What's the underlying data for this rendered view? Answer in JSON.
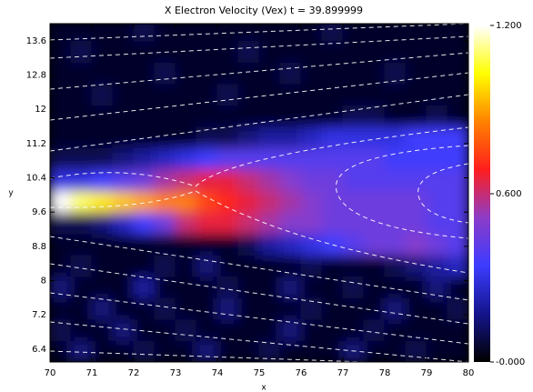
{
  "chart_data": {
    "type": "heatmap",
    "title": "X Electron Velocity (Vex)   t = 39.899999",
    "x_label": "x",
    "y_label": "y",
    "x": [
      70.25,
      70.75,
      71.25,
      71.75,
      72.25,
      72.75,
      73.25,
      73.75,
      74.25,
      74.75,
      75.25,
      75.75,
      76.25,
      76.75,
      77.25,
      77.75,
      78.25,
      78.75,
      79.25,
      79.75
    ],
    "y": [
      6.35,
      6.85,
      7.35,
      7.85,
      8.35,
      8.85,
      9.35,
      9.85,
      10.35,
      10.85,
      11.35,
      11.85,
      12.35,
      12.85,
      13.35,
      13.85
    ],
    "z": [
      [
        0.05,
        0.15,
        0.05,
        0.05,
        0.1,
        0.05,
        0.05,
        0.15,
        0.05,
        0.05,
        0.1,
        0.05,
        0.05,
        0.05,
        0.15,
        0.05,
        0.05,
        0.1,
        0.05,
        0.05
      ],
      [
        0.1,
        0.05,
        0.05,
        0.15,
        0.05,
        0.05,
        0.1,
        0.05,
        0.05,
        0.05,
        0.05,
        0.15,
        0.05,
        0.05,
        0.05,
        0.1,
        0.05,
        0.05,
        0.05,
        0.05
      ],
      [
        0.05,
        0.05,
        0.15,
        0.05,
        0.05,
        0.1,
        0.05,
        0.05,
        0.15,
        0.05,
        0.05,
        0.05,
        0.1,
        0.05,
        0.05,
        0.05,
        0.15,
        0.05,
        0.05,
        0.1
      ],
      [
        0.15,
        0.05,
        0.05,
        0.05,
        0.2,
        0.05,
        0.05,
        0.05,
        0.1,
        0.05,
        0.05,
        0.15,
        0.05,
        0.05,
        0.1,
        0.05,
        0.05,
        0.05,
        0.15,
        0.05
      ],
      [
        0.05,
        0.1,
        0.05,
        0.05,
        0.05,
        0.1,
        0.05,
        0.15,
        0.05,
        0.05,
        0.05,
        0.05,
        0.1,
        0.05,
        0.05,
        0.05,
        0.1,
        0.15,
        0.2,
        0.25
      ],
      [
        0.05,
        0.05,
        0.05,
        0.05,
        0.05,
        0.05,
        0.05,
        0.05,
        0.05,
        0.1,
        0.2,
        0.25,
        0.3,
        0.35,
        0.4,
        0.45,
        0.45,
        0.5,
        0.45,
        0.4
      ],
      [
        0.1,
        0.1,
        0.15,
        0.25,
        0.35,
        0.45,
        0.6,
        0.65,
        0.65,
        0.6,
        0.55,
        0.5,
        0.5,
        0.45,
        0.45,
        0.45,
        0.45,
        0.45,
        0.4,
        0.4
      ],
      [
        1.2,
        1.1,
        1.0,
        0.95,
        0.9,
        0.85,
        0.85,
        0.75,
        0.7,
        0.65,
        0.6,
        0.55,
        0.5,
        0.45,
        0.45,
        0.45,
        0.45,
        0.45,
        0.4,
        0.4
      ],
      [
        0.3,
        0.3,
        0.35,
        0.4,
        0.45,
        0.55,
        0.6,
        0.65,
        0.65,
        0.6,
        0.55,
        0.5,
        0.45,
        0.45,
        0.4,
        0.4,
        0.4,
        0.4,
        0.4,
        0.4
      ],
      [
        0.1,
        0.1,
        0.1,
        0.15,
        0.2,
        0.25,
        0.3,
        0.35,
        0.4,
        0.4,
        0.4,
        0.4,
        0.4,
        0.4,
        0.4,
        0.4,
        0.35,
        0.35,
        0.35,
        0.35
      ],
      [
        0.05,
        0.05,
        0.05,
        0.05,
        0.05,
        0.05,
        0.05,
        0.1,
        0.1,
        0.15,
        0.2,
        0.2,
        0.25,
        0.3,
        0.3,
        0.3,
        0.3,
        0.35,
        0.35,
        0.35
      ],
      [
        0.05,
        0.05,
        0.05,
        0.05,
        0.05,
        0.05,
        0.05,
        0.05,
        0.05,
        0.05,
        0.05,
        0.05,
        0.05,
        0.05,
        0.1,
        0.1,
        0.05,
        0.05,
        0.1,
        0.05
      ],
      [
        0.05,
        0.05,
        0.1,
        0.05,
        0.05,
        0.05,
        0.05,
        0.05,
        0.1,
        0.05,
        0.05,
        0.05,
        0.05,
        0.05,
        0.05,
        0.05,
        0.05,
        0.05,
        0.05,
        0.05
      ],
      [
        0.05,
        0.05,
        0.05,
        0.05,
        0.05,
        0.1,
        0.05,
        0.05,
        0.05,
        0.05,
        0.05,
        0.1,
        0.05,
        0.05,
        0.05,
        0.05,
        0.1,
        0.05,
        0.05,
        0.05
      ],
      [
        0.05,
        0.1,
        0.05,
        0.05,
        0.05,
        0.05,
        0.05,
        0.05,
        0.05,
        0.1,
        0.05,
        0.05,
        0.05,
        0.05,
        0.05,
        0.05,
        0.05,
        0.05,
        0.05,
        0.05
      ],
      [
        0.05,
        0.05,
        0.05,
        0.05,
        0.1,
        0.05,
        0.05,
        0.05,
        0.05,
        0.05,
        0.05,
        0.05,
        0.05,
        0.1,
        0.05,
        0.05,
        0.05,
        0.05,
        0.05,
        0.05
      ]
    ],
    "xlim": [
      70,
      80
    ],
    "ylim": [
      6.1,
      14.0
    ],
    "xticks": [
      70,
      71,
      72,
      73,
      74,
      75,
      76,
      77,
      78,
      79,
      80
    ],
    "yticks": [
      6.4,
      7.2,
      8.0,
      8.8,
      9.6,
      10.4,
      11.2,
      12.0,
      12.8,
      13.6
    ],
    "zlim": [
      0,
      1.2
    ],
    "zticks": [
      {
        "value": 0,
        "label": "-0.000"
      },
      {
        "value": 0.6,
        "label": "0.600"
      },
      {
        "value": 1.2,
        "label": "1.200"
      }
    ],
    "colorscale": [
      "#000000",
      "#14148c",
      "#3c3cff",
      "#8c3cc8",
      "#ff1e1e",
      "#ff8200",
      "#ffff00",
      "#ffffff"
    ]
  }
}
